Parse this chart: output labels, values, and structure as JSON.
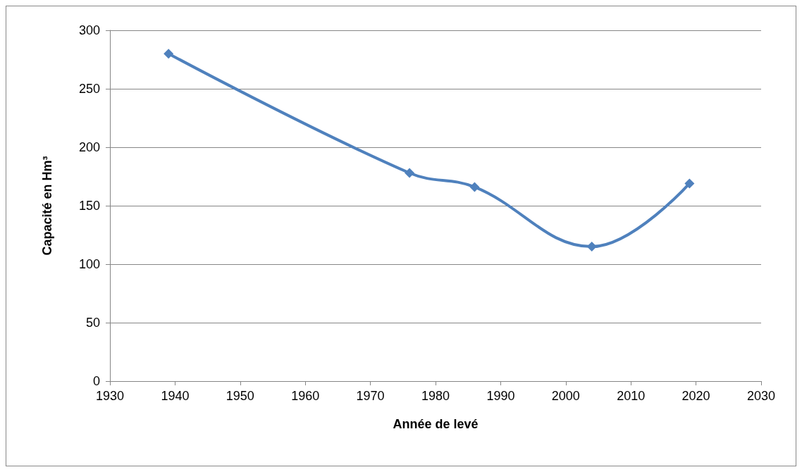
{
  "chart_data": {
    "type": "line",
    "xlabel": "Année de levé",
    "ylabel": "Capacité en Hm³",
    "x": [
      1939,
      1976,
      1986,
      2004,
      2019
    ],
    "series": [
      {
        "color": "#4f81bd",
        "values": [
          280,
          178,
          166,
          115,
          169
        ]
      }
    ],
    "xlim": [
      1930,
      2030
    ],
    "xticks": [
      1930,
      1940,
      1950,
      1960,
      1970,
      1980,
      1990,
      2000,
      2010,
      2020,
      2030
    ],
    "ylim": [
      0,
      300
    ],
    "yticks": [
      0,
      50,
      100,
      150,
      200,
      250,
      300
    ],
    "grid": "y",
    "marker": "diamond",
    "line_style": "solid"
  }
}
